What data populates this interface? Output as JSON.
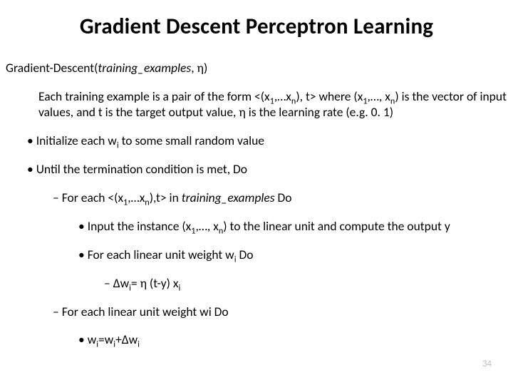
{
  "title": "Gradient Descent Perceptron Learning",
  "line_open": "Gradient-Descent(",
  "line_arg1": "training_examples",
  "line_mid": ", η)",
  "desc_a": "Each training example is a pair of the form <(x",
  "desc_b": ",…x",
  "desc_c": "), t> where (x",
  "desc_d": ",…, x",
  "desc_e": ") is the vector of input values, and t is the target output value, η is the learning rate (e.g. 0. 1)",
  "b1a": "Initialize each w",
  "b1a_tail": " to some small random value",
  "b1b": "Until the termination condition is met, Do",
  "b2a_a": "For each <(x",
  "b2a_b": ",…x",
  "b2a_c": "),t> in ",
  "b2a_d": "training_examples",
  "b2a_e": " Do",
  "b3a_a": "Input the instance (x",
  "b3a_b": ",…, x",
  "b3a_c": ") to the linear unit and compute the output y",
  "b3b_a": "For each linear unit weight w",
  "b3b_b": " Do",
  "b4a_a": "Δw",
  "b4a_b": "= η (t-y) x",
  "b2b": "For each linear unit weight wi Do",
  "b3c_a": "w",
  "b3c_b": "=w",
  "b3c_c": "+Δw",
  "sub1": "1",
  "subn": "n",
  "subi": "i",
  "page_number": "34",
  "colors": {
    "text": "#000000",
    "bg": "#ffffff",
    "pagenum": "#bfbfbf"
  }
}
